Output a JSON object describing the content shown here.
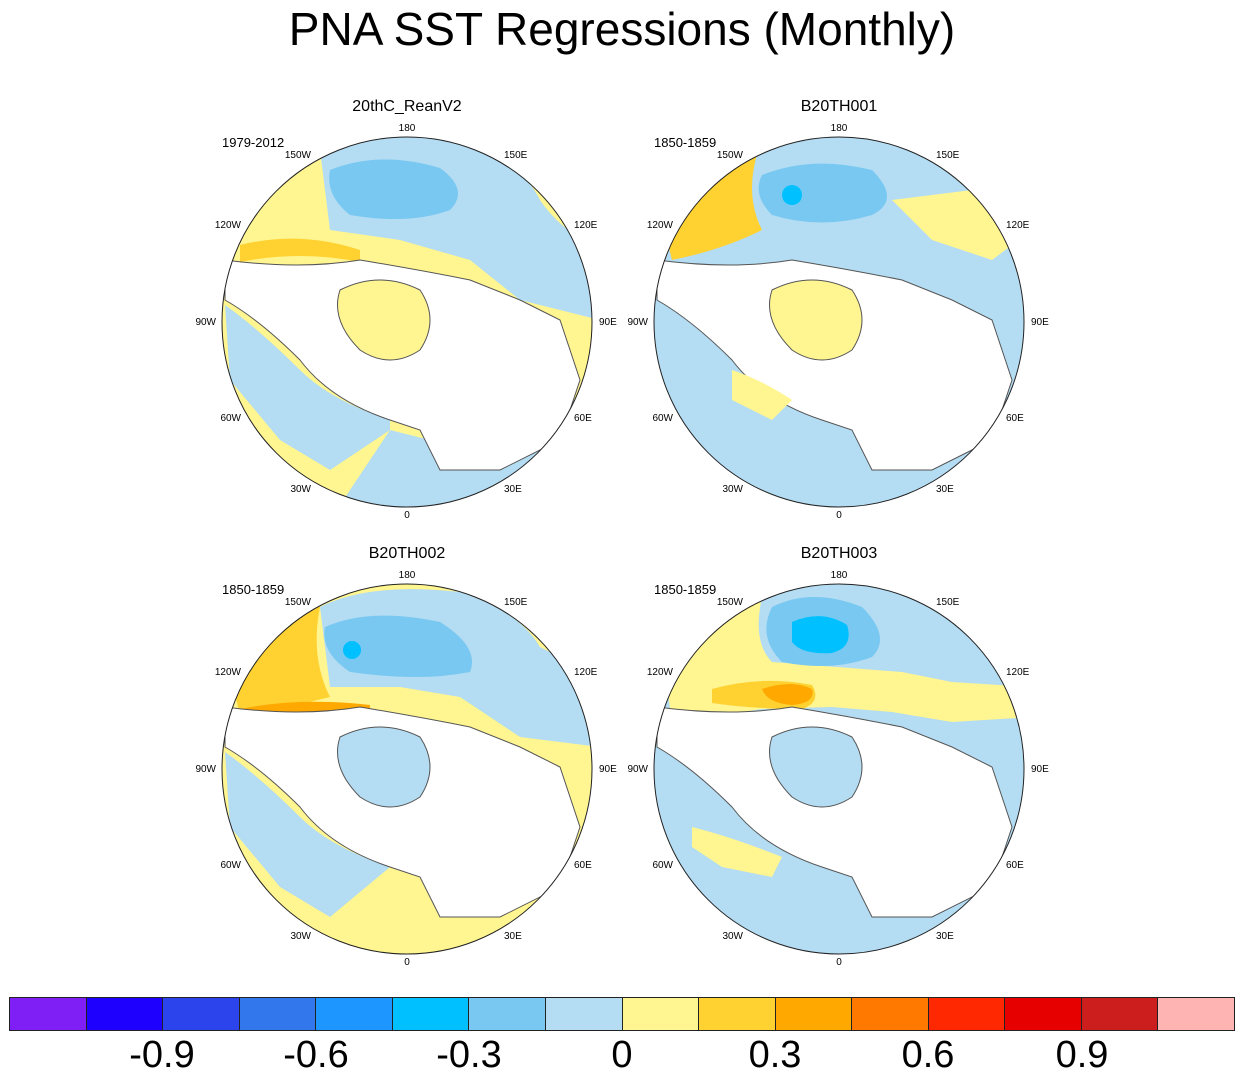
{
  "title": "PNA SST Regressions (Monthly)",
  "panels": [
    {
      "title": "20thC_ReanV2",
      "period": "1979-2012"
    },
    {
      "title": "B20TH001",
      "period": "1850-1859"
    },
    {
      "title": "B20TH002",
      "period": "1850-1859"
    },
    {
      "title": "B20TH003",
      "period": "1850-1859"
    }
  ],
  "longitude_labels": [
    "180",
    "150E",
    "120E",
    "90E",
    "60E",
    "30E",
    "0",
    "30W",
    "60W",
    "90W",
    "120W",
    "150W"
  ],
  "colorbar": {
    "colors": [
      "#7f1ff5",
      "#1e00ff",
      "#2b44ec",
      "#3278ec",
      "#1e96ff",
      "#00c0ff",
      "#78c8f2",
      "#b4dcf2",
      "#fff591",
      "#ffd232",
      "#ffa800",
      "#ff7800",
      "#ff2800",
      "#e60000",
      "#cd1e1e",
      "#ffb4b4"
    ],
    "tick_labels": [
      "-0.9",
      "-0.6",
      "-0.3",
      "0",
      "0.3",
      "0.6",
      "0.9"
    ]
  },
  "colors": {
    "land": "#ffffff",
    "coast": "#555555",
    "pos_weak": "#fff591",
    "pos_mid": "#ffd232",
    "pos_strong": "#ffa800",
    "neg_weak": "#b4dcf2",
    "neg_mid": "#78c8f2",
    "neg_strong": "#00c0ff"
  }
}
